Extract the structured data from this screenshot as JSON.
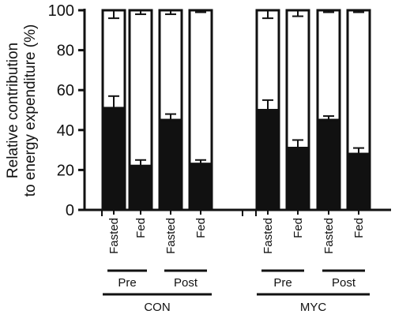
{
  "chart_data": {
    "type": "bar",
    "stacked": true,
    "ylabel_lines": [
      "Relative contribution",
      "to energy expenditure (%)"
    ],
    "ylim": [
      0,
      100
    ],
    "yticks": [
      0,
      20,
      40,
      60,
      80,
      100
    ],
    "colors": {
      "lower": "#111111",
      "upper": "#ffffff",
      "outline": "#111111"
    },
    "groups": [
      {
        "name": "CON",
        "periods": [
          {
            "name": "Pre",
            "bars": [
              {
                "label": "Fasted",
                "lower": 51,
                "lower_err": 6,
                "upper_err": 4
              },
              {
                "label": "Fed",
                "lower": 22,
                "lower_err": 3,
                "upper_err": 2
              }
            ]
          },
          {
            "name": "Post",
            "bars": [
              {
                "label": "Fasted",
                "lower": 45,
                "lower_err": 3,
                "upper_err": 2
              },
              {
                "label": "Fed",
                "lower": 23,
                "lower_err": 2,
                "upper_err": 1
              }
            ]
          }
        ]
      },
      {
        "name": "MYC",
        "periods": [
          {
            "name": "Pre",
            "bars": [
              {
                "label": "Fasted",
                "lower": 50,
                "lower_err": 5,
                "upper_err": 4
              },
              {
                "label": "Fed",
                "lower": 31,
                "lower_err": 4,
                "upper_err": 3
              }
            ]
          },
          {
            "name": "Post",
            "bars": [
              {
                "label": "Fasted",
                "lower": 45,
                "lower_err": 2,
                "upper_err": 1
              },
              {
                "label": "Fed",
                "lower": 28,
                "lower_err": 3,
                "upper_err": 1
              }
            ]
          }
        ]
      }
    ]
  }
}
